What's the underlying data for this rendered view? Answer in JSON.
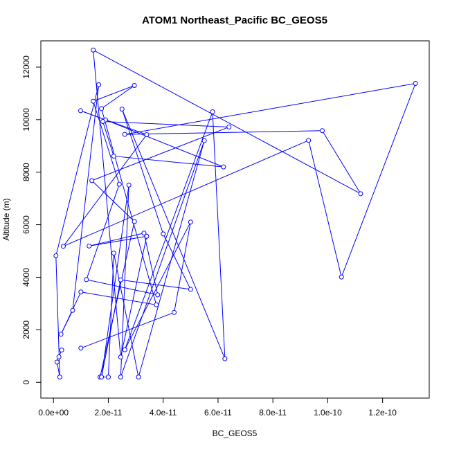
{
  "chart_data": {
    "type": "line",
    "markers": "open-circle",
    "title": "ATOM1 Northeast_Pacific BC_GEOS5",
    "xlabel": "BC_GEOS5",
    "ylabel": "Altitude (m)",
    "xlim": [
      -4.6e-12,
      1.37e-10
    ],
    "ylim": [
      -600,
      13000
    ],
    "xticks": [
      0,
      2e-11,
      4e-11,
      6e-11,
      8e-11,
      1e-10,
      1.2e-10
    ],
    "xtick_labels": [
      "0.0e+00",
      "2.0e-11",
      "4.0e-11",
      "6.0e-11",
      "8.0e-11",
      "1.0e-10",
      "1.2e-10"
    ],
    "yticks": [
      0,
      2000,
      4000,
      6000,
      8000,
      10000,
      12000
    ],
    "ytick_labels": [
      "0",
      "2000",
      "4000",
      "6000",
      "8000",
      "10000",
      "12000"
    ],
    "grid": false,
    "color": "#0000ff",
    "series": [
      {
        "x": [
          3e-12,
          2e-12,
          1.3e-12,
          2.3e-12,
          9e-13,
          1.65e-11,
          7e-12,
          2.75e-12,
          1e-11,
          3.75e-11,
          1.75e-11,
          2.95e-11,
          1.45e-11,
          2.4e-11,
          1.2e-11,
          3.8e-11,
          3.3e-11,
          1.3e-11,
          3.4e-11,
          2.45e-11,
          1.45e-11,
          1.12e-10,
          9.8e-11,
          2.6e-11,
          1.32e-10,
          1.05e-10,
          9.3e-11,
          3.6e-12,
          3.4e-11,
          9.9e-12,
          1.9e-11,
          6.2e-11,
          2.2e-11,
          1.8e-11,
          6.4e-11,
          1.4e-11,
          2.95e-11,
          1.7e-11,
          2e-11,
          2.2e-11,
          3.1e-11,
          5.5e-11,
          2.45e-11,
          2.75e-11,
          1.75e-11,
          2.45e-11,
          5e-11,
          4e-11,
          2.5e-11,
          6.25e-11,
          5.8e-11,
          2.6e-11,
          5e-11,
          4.4e-11,
          1e-11
        ],
        "y": [
          1230,
          970,
          770,
          200,
          4820,
          11330,
          2740,
          1830,
          3440,
          2950,
          10420,
          11300,
          10700,
          7540,
          3910,
          3330,
          5680,
          5190,
          5560,
          960,
          12650,
          7180,
          9580,
          9440,
          11380,
          4010,
          9210,
          5180,
          9430,
          10340,
          9990,
          8200,
          8610,
          9930,
          9720,
          7680,
          6120,
          200,
          200,
          4920,
          200,
          9200,
          200,
          7510,
          200,
          3900,
          3540,
          5650,
          10400,
          900,
          10300,
          1240,
          6100,
          2660,
          1300
        ]
      }
    ]
  }
}
